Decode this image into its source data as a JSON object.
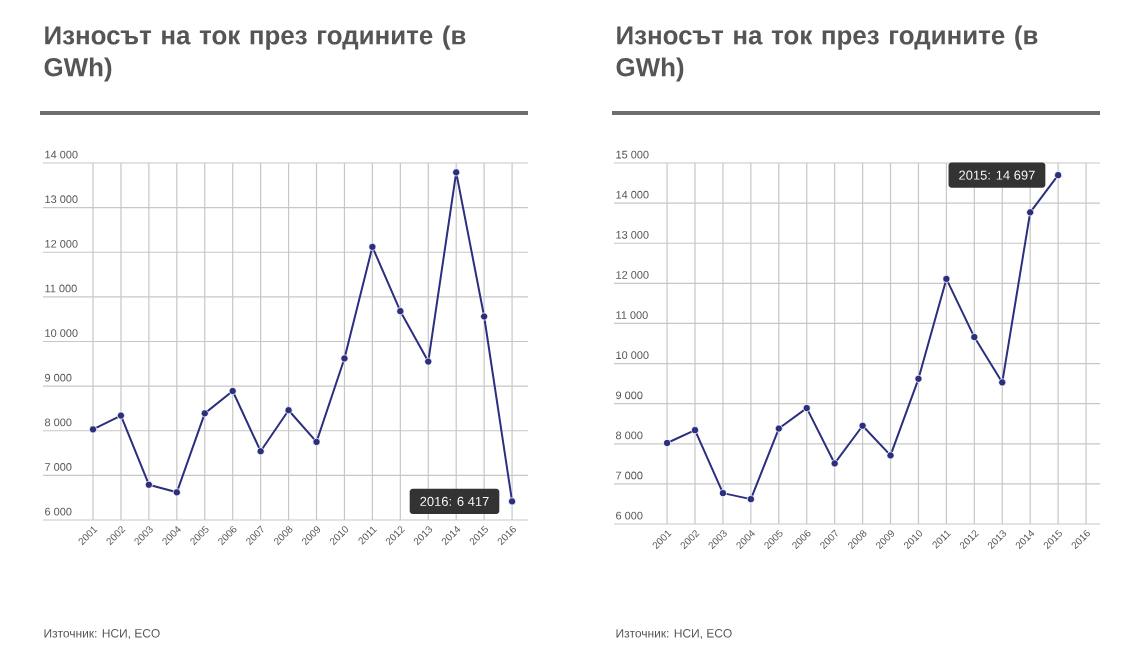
{
  "chart_data": [
    {
      "type": "line",
      "title": "Износът на ток през годините (в GWh)",
      "categories": [
        "2001",
        "2002",
        "2003",
        "2004",
        "2005",
        "2006",
        "2007",
        "2008",
        "2009",
        "2010",
        "2011",
        "2012",
        "2013",
        "2014",
        "2015",
        "2016"
      ],
      "series": [
        {
          "color": "#2b2f7e",
          "values": [
            8030,
            8340,
            6790,
            6620,
            8390,
            8890,
            7540,
            8460,
            7750,
            9620,
            12120,
            10680,
            9550,
            13790,
            10560,
            6417
          ]
        }
      ],
      "ylim": [
        6000,
        14000
      ],
      "yticks": [
        {
          "value": 6000,
          "label": "6 000"
        },
        {
          "value": 7000,
          "label": "7 000"
        },
        {
          "value": 8000,
          "label": "8 000"
        },
        {
          "value": 9000,
          "label": "9 000"
        },
        {
          "value": 10000,
          "label": "10 000"
        },
        {
          "value": 11000,
          "label": "11 000"
        },
        {
          "value": 12000,
          "label": "12 000"
        },
        {
          "value": 13000,
          "label": "13 000"
        },
        {
          "value": 14000,
          "label": "14 000"
        }
      ],
      "grid": true,
      "marker": "circle",
      "annotations": [
        {
          "text": "2016: 6 417",
          "x": "2016",
          "y": 6417
        },
        "Източник: НСИ, ECO"
      ]
    },
    {
      "type": "line",
      "title": "Износът на ток през годините (в GWh)",
      "categories": [
        "2001",
        "2002",
        "2003",
        "2004",
        "2005",
        "2006",
        "2007",
        "2008",
        "2009",
        "2010",
        "2011",
        "2012",
        "2013",
        "2014",
        "2015",
        "2016"
      ],
      "series": [
        {
          "color": "#2b2f7e",
          "values": [
            8020,
            8340,
            6770,
            6620,
            8380,
            8890,
            7510,
            8450,
            7710,
            9620,
            12110,
            10660,
            9530,
            13770,
            14697,
            null
          ]
        }
      ],
      "ylim": [
        6000,
        15000
      ],
      "yticks": [
        {
          "value": 6000,
          "label": "6 000"
        },
        {
          "value": 7000,
          "label": "7 000"
        },
        {
          "value": 8000,
          "label": "8 000"
        },
        {
          "value": 9000,
          "label": "9 000"
        },
        {
          "value": 10000,
          "label": "10 000"
        },
        {
          "value": 11000,
          "label": "11 000"
        },
        {
          "value": 12000,
          "label": "12 000"
        },
        {
          "value": 13000,
          "label": "13 000"
        },
        {
          "value": 14000,
          "label": "14 000"
        },
        {
          "value": 15000,
          "label": "15 000"
        }
      ],
      "grid": true,
      "marker": "circle",
      "annotations": [
        {
          "text": "2015: 14 697",
          "x": "2015",
          "y": 14697
        },
        "Източник: НСИ, ECO"
      ]
    }
  ]
}
